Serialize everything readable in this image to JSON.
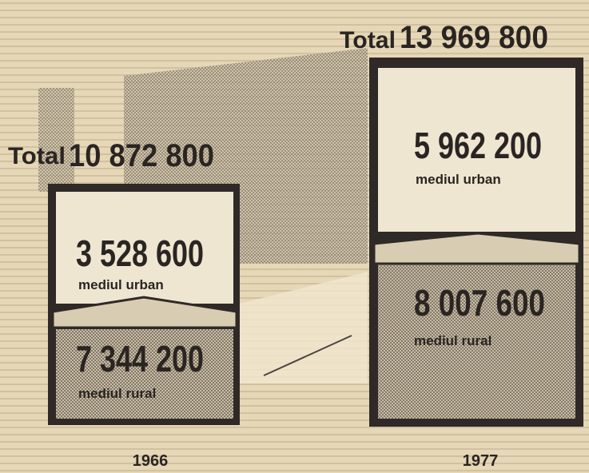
{
  "panels": [
    {
      "year": "1966",
      "total_label": "Total",
      "total": "10 872 800",
      "segments": [
        {
          "value": "3 528 600",
          "label": "mediul urban"
        },
        {
          "value": "7 344 200",
          "label": "mediul rural"
        }
      ]
    },
    {
      "year": "1977",
      "total_label": "Total",
      "total": "13 969 800",
      "segments": [
        {
          "value": "5 962 200",
          "label": "mediul urban"
        },
        {
          "value": "8 007 600",
          "label": "mediul rural"
        }
      ]
    }
  ]
}
